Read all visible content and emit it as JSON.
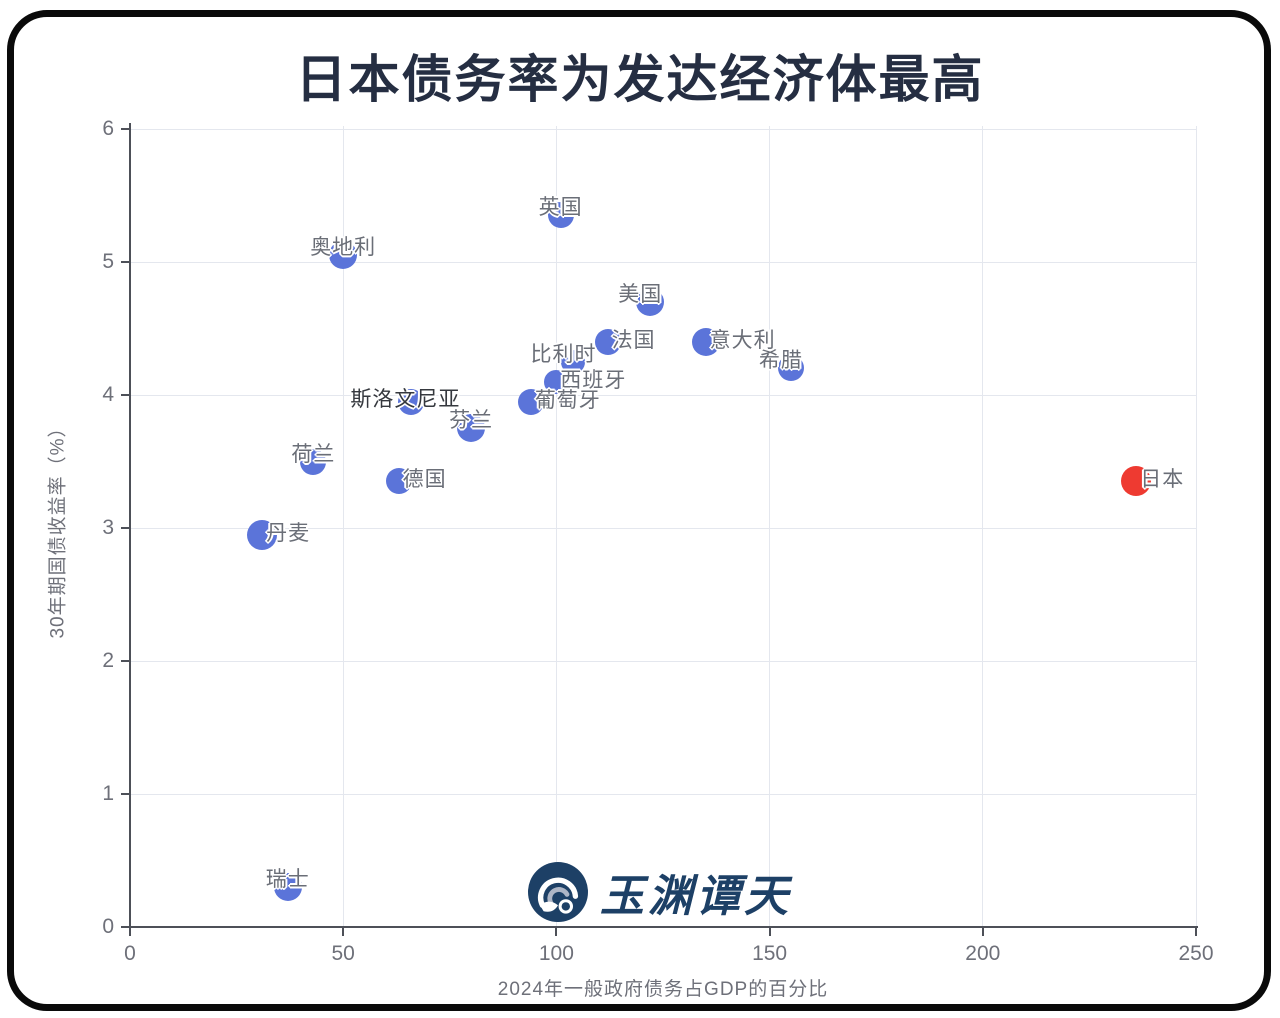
{
  "title": "日本债务率为发达经济体最高",
  "logo": {
    "text": "玉渊谭天",
    "icon": "wave-logo-icon"
  },
  "colors": {
    "background": "#ffffff",
    "frame_border": "#0a0a0a",
    "title": "#252e42",
    "bubble_default": "#5b74d9",
    "bubble_highlight": "#ee3a31",
    "point_label": "#6a6e77",
    "point_label_dark": "#35383e",
    "gridline": "#e4e7ee",
    "axis": "#4d5058",
    "tick_label": "#6e7079",
    "logo_navy": "#1d4066"
  },
  "chart_data": {
    "type": "scatter",
    "title": "日本债务率为发达经济体最高",
    "xlabel": "2024年一般政府债务占GDP的百分比",
    "ylabel": "30年期国债收益率（%）",
    "xlim": [
      0,
      250
    ],
    "ylim": [
      0,
      6
    ],
    "x_ticks": [
      0,
      50,
      100,
      150,
      200,
      250
    ],
    "y_ticks": [
      0,
      1,
      2,
      3,
      4,
      5,
      6
    ],
    "grid": true,
    "legend": false,
    "points": [
      {
        "id": "uk",
        "name": "英国",
        "x": 101,
        "y": 5.35,
        "r": 13,
        "label_position": "above"
      },
      {
        "id": "austria",
        "name": "奥地利",
        "x": 50,
        "y": 5.05,
        "r": 14,
        "label_position": "above"
      },
      {
        "id": "usa",
        "name": "美国",
        "x": 122,
        "y": 4.7,
        "r": 14,
        "label_position": "above-left"
      },
      {
        "id": "france",
        "name": "法国",
        "x": 112,
        "y": 4.4,
        "r": 13,
        "label_position": "right"
      },
      {
        "id": "italy",
        "name": "意大利",
        "x": 135,
        "y": 4.4,
        "r": 14,
        "label_position": "right"
      },
      {
        "id": "greece",
        "name": "希腊",
        "x": 155,
        "y": 4.2,
        "r": 13,
        "label_position": "above-left"
      },
      {
        "id": "belgium",
        "name": "比利时",
        "x": 104,
        "y": 4.25,
        "r": 12,
        "label_position": "above-left"
      },
      {
        "id": "spain",
        "name": "西班牙",
        "x": 100,
        "y": 4.1,
        "r": 12,
        "label_position": "right"
      },
      {
        "id": "portugal",
        "name": "葡萄牙",
        "x": 94,
        "y": 3.95,
        "r": 13,
        "label_position": "right"
      },
      {
        "id": "slovenia",
        "name": "斯洛文尼亚",
        "x": 66,
        "y": 3.95,
        "r": 13,
        "label_position": "overlap-left",
        "label_style": "dark"
      },
      {
        "id": "finland",
        "name": "芬兰",
        "x": 80,
        "y": 3.75,
        "r": 14,
        "label_position": "above"
      },
      {
        "id": "netherlands",
        "name": "荷兰",
        "x": 43,
        "y": 3.5,
        "r": 13,
        "label_position": "above"
      },
      {
        "id": "germany",
        "name": "德国",
        "x": 63,
        "y": 3.35,
        "r": 13,
        "label_position": "right"
      },
      {
        "id": "denmark",
        "name": "丹麦",
        "x": 31,
        "y": 2.95,
        "r": 15,
        "label_position": "right"
      },
      {
        "id": "switzerland",
        "name": "瑞士",
        "x": 37,
        "y": 0.3,
        "r": 14,
        "label_position": "above"
      },
      {
        "id": "japan",
        "name": "日本",
        "x": 236,
        "y": 3.35,
        "r": 15,
        "label_position": "right",
        "highlight": true
      }
    ]
  }
}
